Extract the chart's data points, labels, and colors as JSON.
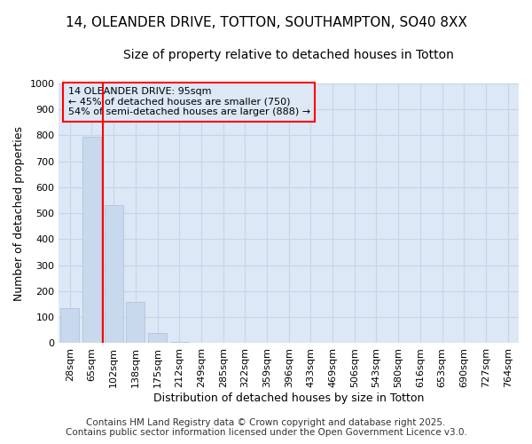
{
  "title_line1": "14, OLEANDER DRIVE, TOTTON, SOUTHAMPTON, SO40 8XX",
  "title_line2": "Size of property relative to detached houses in Totton",
  "xlabel": "Distribution of detached houses by size in Totton",
  "ylabel": "Number of detached properties",
  "categories": [
    "28sqm",
    "65sqm",
    "102sqm",
    "138sqm",
    "175sqm",
    "212sqm",
    "249sqm",
    "285sqm",
    "322sqm",
    "359sqm",
    "396sqm",
    "433sqm",
    "469sqm",
    "506sqm",
    "543sqm",
    "580sqm",
    "616sqm",
    "653sqm",
    "690sqm",
    "727sqm",
    "764sqm"
  ],
  "values": [
    135,
    795,
    530,
    160,
    40,
    5,
    0,
    0,
    0,
    0,
    0,
    0,
    0,
    0,
    0,
    0,
    0,
    0,
    0,
    0,
    0
  ],
  "bar_color": "#c8d8ed",
  "bar_edge_color": "#b0c4de",
  "axes_bg_color": "#dce8f5",
  "fig_bg_color": "#ffffff",
  "grid_color": "#c5d5e8",
  "ylim": [
    0,
    1000
  ],
  "yticks": [
    0,
    100,
    200,
    300,
    400,
    500,
    600,
    700,
    800,
    900,
    1000
  ],
  "red_line_x": 1.5,
  "annotation_text": "14 OLEANDER DRIVE: 95sqm\n← 45% of detached houses are smaller (750)\n54% of semi-detached houses are larger (888) →",
  "footer_line1": "Contains HM Land Registry data © Crown copyright and database right 2025.",
  "footer_line2": "Contains public sector information licensed under the Open Government Licence v3.0.",
  "title_fontsize": 11,
  "subtitle_fontsize": 10,
  "axis_label_fontsize": 9,
  "tick_fontsize": 8,
  "annotation_fontsize": 8,
  "footer_fontsize": 7.5
}
